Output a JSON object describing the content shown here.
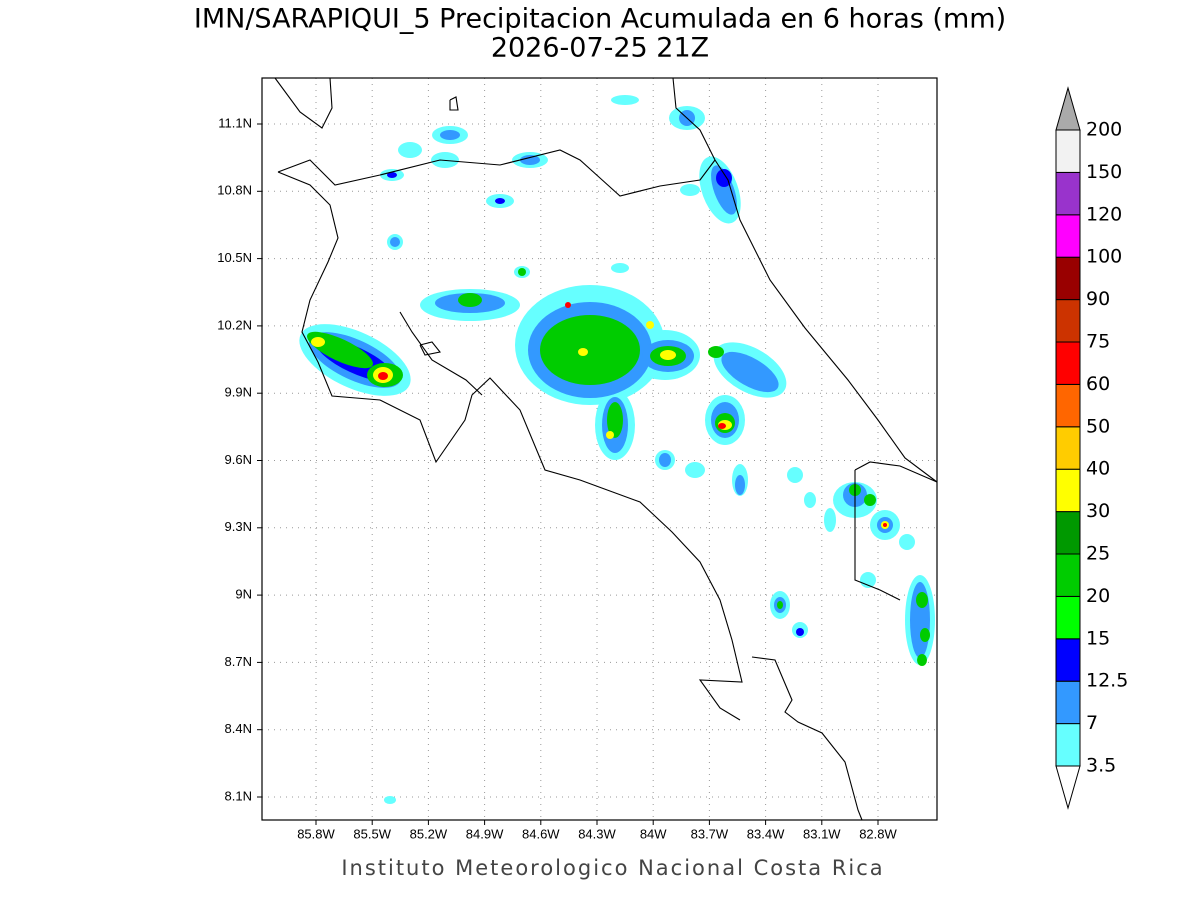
{
  "title": "IMN/SARAPIQUI_5 Precipitacion Acumulada en 6 horas (mm)",
  "subtitle": "2026-07-25 21Z",
  "footer": "Instituto Meteorologico Nacional Costa Rica",
  "map": {
    "lon_ticks": [
      {
        "value": -85.8,
        "label": "85.8W"
      },
      {
        "value": -85.5,
        "label": "85.5W"
      },
      {
        "value": -85.2,
        "label": "85.2W"
      },
      {
        "value": -84.9,
        "label": "84.9W"
      },
      {
        "value": -84.6,
        "label": "84.6W"
      },
      {
        "value": -84.3,
        "label": "84.3W"
      },
      {
        "value": -84.0,
        "label": "84W"
      },
      {
        "value": -83.7,
        "label": "83.7W"
      },
      {
        "value": -83.4,
        "label": "83.4W"
      },
      {
        "value": -83.1,
        "label": "83.1W"
      },
      {
        "value": -82.8,
        "label": "82.8W"
      }
    ],
    "lat_ticks": [
      {
        "value": 11.1,
        "label": "11.1N"
      },
      {
        "value": 10.8,
        "label": "10.8N"
      },
      {
        "value": 10.5,
        "label": "10.5N"
      },
      {
        "value": 10.2,
        "label": "10.2N"
      },
      {
        "value": 9.9,
        "label": "9.9N"
      },
      {
        "value": 9.6,
        "label": "9.6N"
      },
      {
        "value": 9.3,
        "label": "9.3N"
      },
      {
        "value": 9.0,
        "label": "9N"
      },
      {
        "value": 8.7,
        "label": "8.7N"
      },
      {
        "value": 8.4,
        "label": "8.4N"
      },
      {
        "value": 8.1,
        "label": "8.1N"
      }
    ]
  },
  "colorbar": {
    "levels": [
      3.5,
      7,
      12.5,
      15,
      20,
      25,
      30,
      40,
      50,
      60,
      75,
      90,
      100,
      120,
      150,
      200
    ],
    "colors": [
      "#ffffff",
      "#66ffff",
      "#3399ff",
      "#0000ff",
      "#00ff00",
      "#00cc00",
      "#009900",
      "#ffff00",
      "#ffcc00",
      "#ff6600",
      "#ff0000",
      "#cc3300",
      "#990000",
      "#ff00ff",
      "#9933cc",
      "#f2f2f2",
      "#aaaaaa"
    ]
  }
}
